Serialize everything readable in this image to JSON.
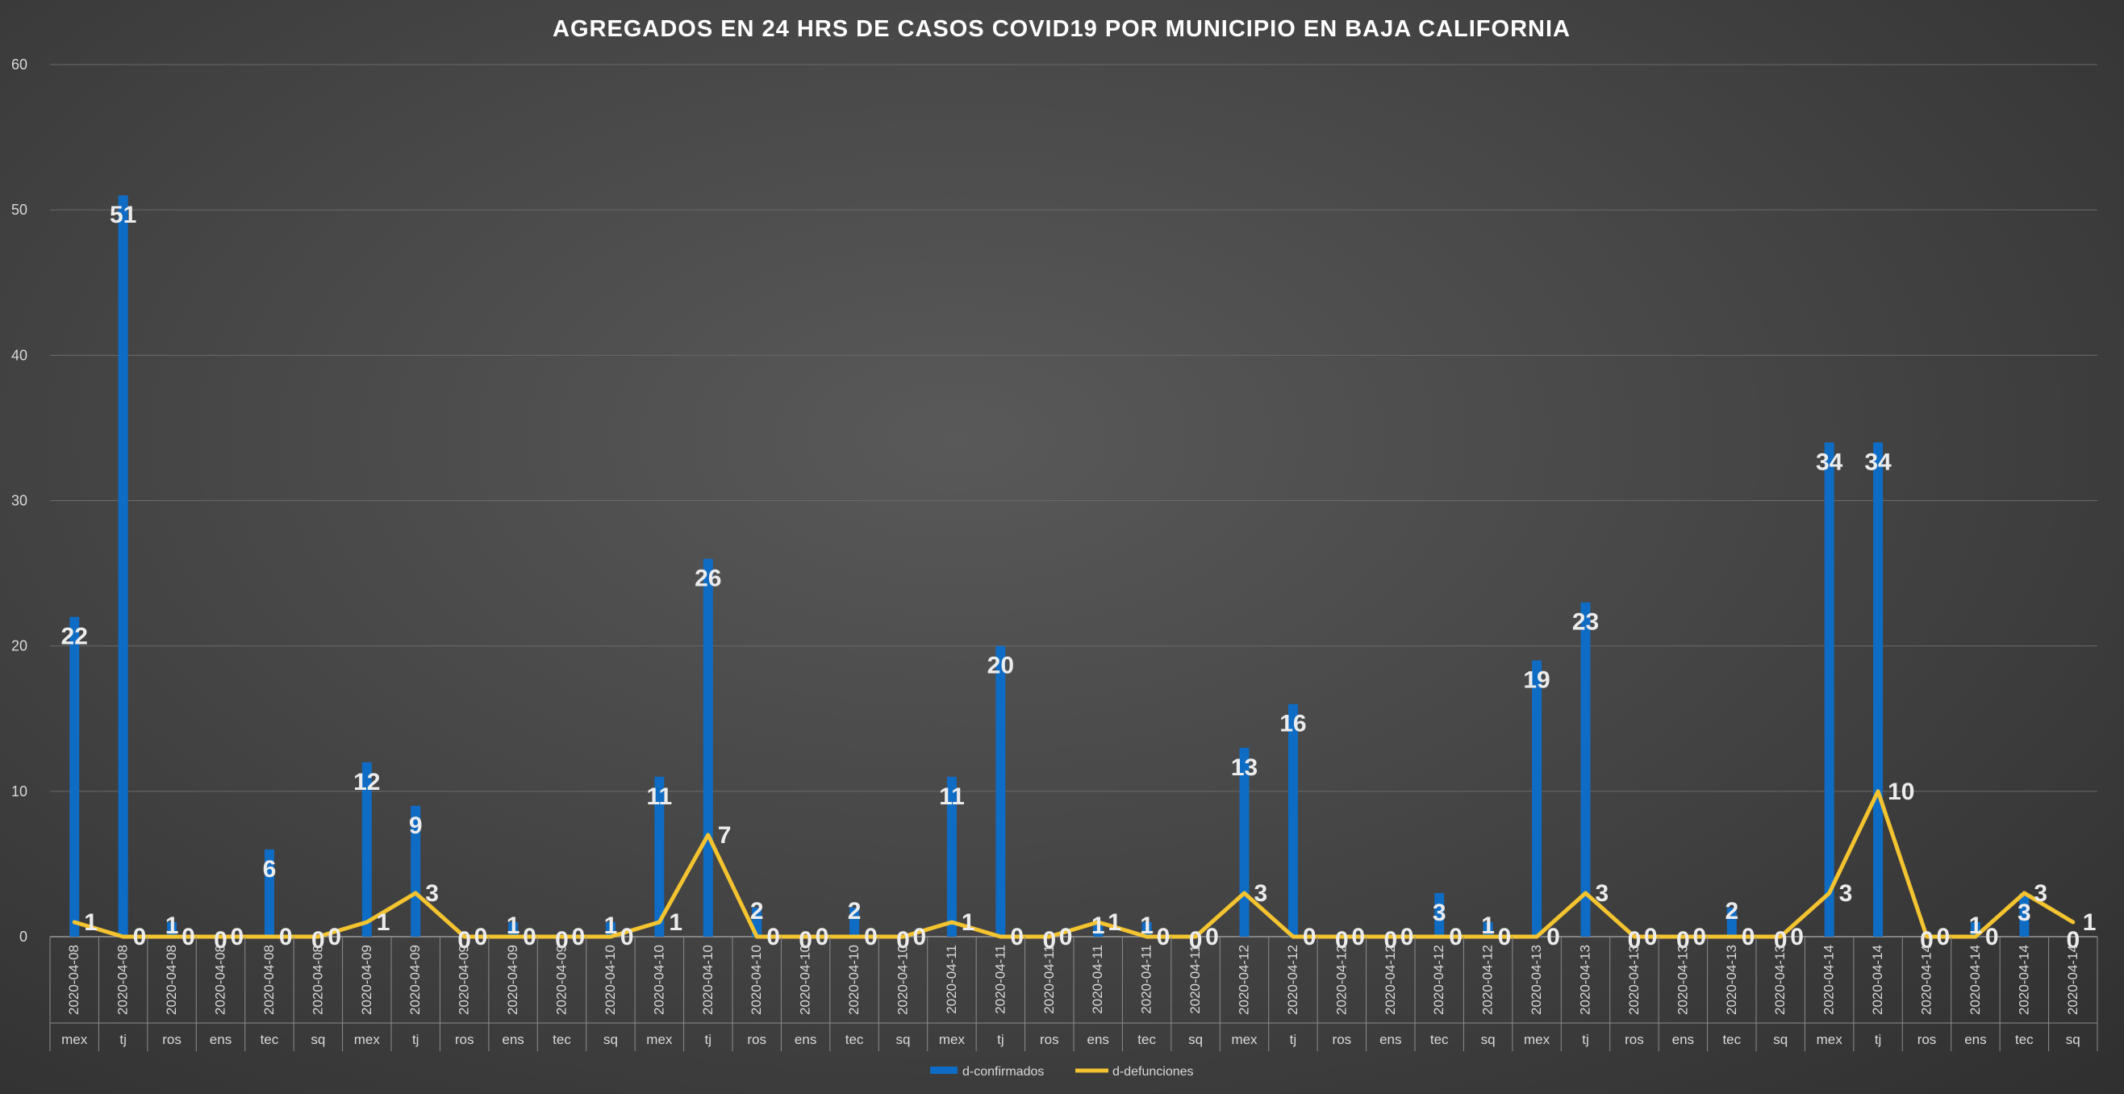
{
  "chart_data": {
    "type": "bar",
    "title": "AGREGADOS EN 24 HRS DE CASOS COVID19 POR MUNICIPIO EN BAJA CALIFORNIA",
    "xlabel": "",
    "ylabel": "",
    "ylim": [
      0,
      60
    ],
    "yticks": [
      "0",
      "10",
      "20",
      "30",
      "40",
      "50",
      "60"
    ],
    "grid": true,
    "legend_position": "bottom",
    "categories": [
      {
        "date": "2020-04-08",
        "mun": "mex"
      },
      {
        "date": "2020-04-08",
        "mun": "tj"
      },
      {
        "date": "2020-04-08",
        "mun": "ros"
      },
      {
        "date": "2020-04-08",
        "mun": "ens"
      },
      {
        "date": "2020-04-08",
        "mun": "tec"
      },
      {
        "date": "2020-04-08",
        "mun": "sq"
      },
      {
        "date": "2020-04-09",
        "mun": "mex"
      },
      {
        "date": "2020-04-09",
        "mun": "tj"
      },
      {
        "date": "2020-04-09",
        "mun": "ros"
      },
      {
        "date": "2020-04-09",
        "mun": "ens"
      },
      {
        "date": "2020-04-09",
        "mun": "tec"
      },
      {
        "date": "2020-04-10",
        "mun": "sq"
      },
      {
        "date": "2020-04-10",
        "mun": "mex"
      },
      {
        "date": "2020-04-10",
        "mun": "tj"
      },
      {
        "date": "2020-04-10",
        "mun": "ros"
      },
      {
        "date": "2020-04-10",
        "mun": "ens"
      },
      {
        "date": "2020-04-10",
        "mun": "tec"
      },
      {
        "date": "2020-04-10",
        "mun": "sq"
      },
      {
        "date": "2020-04-11",
        "mun": "mex"
      },
      {
        "date": "2020-04-11",
        "mun": "tj"
      },
      {
        "date": "2020-04-11",
        "mun": "ros"
      },
      {
        "date": "2020-04-11",
        "mun": "ens"
      },
      {
        "date": "2020-04-11",
        "mun": "tec"
      },
      {
        "date": "2020-04-11",
        "mun": "sq"
      },
      {
        "date": "2020-04-12",
        "mun": "mex"
      },
      {
        "date": "2020-04-12",
        "mun": "tj"
      },
      {
        "date": "2020-04-12",
        "mun": "ros"
      },
      {
        "date": "2020-04-12",
        "mun": "ens"
      },
      {
        "date": "2020-04-12",
        "mun": "tec"
      },
      {
        "date": "2020-04-12",
        "mun": "sq"
      },
      {
        "date": "2020-04-13",
        "mun": "mex"
      },
      {
        "date": "2020-04-13",
        "mun": "tj"
      },
      {
        "date": "2020-04-13",
        "mun": "ros"
      },
      {
        "date": "2020-04-13",
        "mun": "ens"
      },
      {
        "date": "2020-04-13",
        "mun": "tec"
      },
      {
        "date": "2020-04-13",
        "mun": "sq"
      },
      {
        "date": "2020-04-14",
        "mun": "mex"
      },
      {
        "date": "2020-04-14",
        "mun": "tj"
      },
      {
        "date": "2020-04-14",
        "mun": "ros"
      },
      {
        "date": "2020-04-14",
        "mun": "ens"
      },
      {
        "date": "2020-04-14",
        "mun": "tec"
      },
      {
        "date": "2020-04-14",
        "mun": "sq"
      }
    ],
    "series": [
      {
        "name": "d-confirmados",
        "kind": "bar",
        "color": "#0f6cc4",
        "values": [
          22,
          51,
          1,
          0,
          6,
          0,
          12,
          9,
          0,
          1,
          0,
          1,
          11,
          26,
          2,
          0,
          2,
          0,
          11,
          20,
          0,
          1,
          1,
          0,
          13,
          16,
          0,
          0,
          3,
          1,
          19,
          23,
          0,
          0,
          2,
          0,
          34,
          34,
          0,
          1,
          3,
          0
        ]
      },
      {
        "name": "d-defunciones",
        "kind": "line",
        "color": "#f4c430",
        "values": [
          1,
          0,
          0,
          0,
          0,
          0,
          1,
          3,
          0,
          0,
          0,
          0,
          1,
          7,
          0,
          0,
          0,
          0,
          1,
          0,
          0,
          1,
          0,
          0,
          3,
          0,
          0,
          0,
          0,
          0,
          0,
          3,
          0,
          0,
          0,
          0,
          3,
          10,
          0,
          0,
          3,
          1
        ]
      }
    ]
  }
}
